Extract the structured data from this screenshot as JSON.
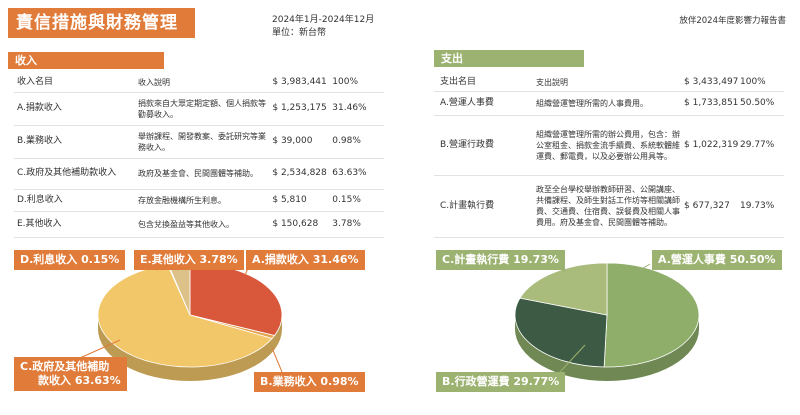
{
  "header": {
    "title": "責信措施與財務管理",
    "period": "2024年1月-2024年12月",
    "unit": "單位：新台幣",
    "report_name": "放伴2024年度影響力報告書"
  },
  "income": {
    "section_title": "收入",
    "headers": {
      "name": "收入名目",
      "desc": "收入說明",
      "amount": "$ 3,983,441",
      "pct": "100%"
    },
    "rows": [
      {
        "name": "A.捐款收入",
        "desc": "捐款來自大眾定期定額、個人捐款等勸募收入。",
        "amount": "$ 1,253,175",
        "pct": "31.46%"
      },
      {
        "name": "B.業務收入",
        "desc": "舉辦課程、開發教案、委託研究等業務收入。",
        "amount": "$ 39,000",
        "pct": "0.98%"
      },
      {
        "name": "C.政府及其他補助款收入",
        "desc": "政府及基金會、民間團體等補助。",
        "amount": "$ 2,534,828",
        "pct": "63.63%"
      },
      {
        "name": "D.利息收入",
        "desc": "存放金融機構所生利息。",
        "amount": "$ 5,810",
        "pct": "0.15%"
      },
      {
        "name": "E.其他收入",
        "desc": "包含兌換盈益等其他收入。",
        "amount": "$ 150,628",
        "pct": "3.78%"
      }
    ]
  },
  "expense": {
    "section_title": "支出",
    "headers": {
      "name": "支出名目",
      "desc": "支出說明",
      "amount": "$ 3,433,497",
      "pct": "100%"
    },
    "rows": [
      {
        "name": "A.營運人事費",
        "desc": "組織營運管理所需的人事費用。",
        "amount": "$ 1,733,851",
        "pct": "50.50%"
      },
      {
        "name": "B.營運行政費",
        "desc": "組織營運管理所需的辦公費用，包含：辦公室租金、捐款金流手續費、系統軟體維運費、郵電費，以及必要辦公用具等。",
        "amount": "$ 1,022,319",
        "pct": "29.77%"
      },
      {
        "name": "C.計畫執行費",
        "desc": "政至全台學校舉辦教師研習、公開講座、共備課程、及師生對話工作坊等相關講師費、交通費、住宿費、誤餐費及相關人事費用。府及基金會、民間團體等補助。",
        "amount": "$ 677,327",
        "pct": "19.73%"
      }
    ]
  },
  "chart_data": [
    {
      "type": "pie",
      "slices": [
        {
          "label": "A.捐款收入 31.46%",
          "value": 31.46,
          "color": "#d9583b"
        },
        {
          "label": "B.業務收入 0.98%",
          "value": 0.98,
          "color": "#e3a24b"
        },
        {
          "label": "C.政府及其他補助款收入 63.63%",
          "value": 63.63,
          "color": "#f2c76a"
        },
        {
          "label": "D.利息收入 0.15%",
          "value": 0.15,
          "color": "#b9a27a"
        },
        {
          "label": "E.其他收入 3.78%",
          "value": 3.78,
          "color": "#dcc289"
        }
      ]
    },
    {
      "type": "pie",
      "slices": [
        {
          "label": "A.營運人事費 50.50%",
          "value": 50.5,
          "color": "#8fae6a"
        },
        {
          "label": "B.行政營運費 29.77%",
          "value": 29.77,
          "color": "#3c5a44"
        },
        {
          "label": "C.計畫執行費 19.73%",
          "value": 19.73,
          "color": "#a9bc7c"
        }
      ]
    }
  ],
  "labels": {
    "income": {
      "d": "D.利息收入 0.15%",
      "e": "E.其他收入 3.78%",
      "a": "A.捐款收入 31.46%",
      "c_line1": "C.政府及其他補助",
      "c_line2": "款收入 63.63%",
      "b": "B.業務收入 0.98%"
    },
    "expense": {
      "c": "C.計畫執行費 19.73%",
      "a": "A.營運人事費 50.50%",
      "b": "B.行政營運費 29.77%"
    }
  }
}
